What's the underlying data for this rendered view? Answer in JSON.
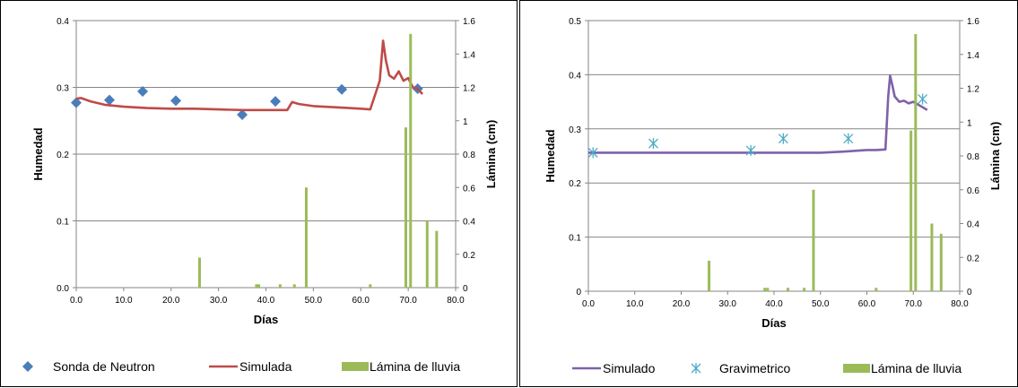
{
  "chart_data": [
    {
      "type": "line",
      "xlabel": "Días",
      "ylabel": "Humedad",
      "y2label": "Lámina (cm)",
      "xlim": [
        0,
        80
      ],
      "ylim": [
        0,
        0.4
      ],
      "y2lim": [
        0,
        1.6
      ],
      "xticks": [
        "0.0",
        "10.0",
        "20.0",
        "30.0",
        "40.0",
        "50.0",
        "60.0",
        "70.0",
        "80.0"
      ],
      "yticks": [
        "0.0",
        "0.1",
        "0.2",
        "0.3",
        "0.4"
      ],
      "y2ticks": [
        "0",
        "0.2",
        "0.4",
        "0.6",
        "0.8",
        "1",
        "1.2",
        "1.4",
        "1.6"
      ],
      "grid": "horizontal",
      "legend_position": "bottom",
      "series": [
        {
          "name": "Sonda de Neutron",
          "kind": "scatter",
          "marker": "diamond",
          "color": "#4a7ebb",
          "x": [
            0,
            7,
            14,
            21,
            35,
            42,
            56,
            72
          ],
          "y": [
            0.277,
            0.281,
            0.294,
            0.28,
            0.259,
            0.279,
            0.297,
            0.298
          ]
        },
        {
          "name": "Simulada",
          "kind": "line",
          "color": "#be4b48",
          "x": [
            0,
            1,
            3,
            6,
            10,
            15,
            20,
            25,
            30,
            35,
            40,
            44.5,
            45.5,
            47,
            50,
            55,
            60,
            62,
            64,
            64.7,
            65.3,
            66,
            67,
            68,
            69,
            70,
            71,
            72,
            73
          ],
          "y": [
            0.283,
            0.284,
            0.279,
            0.274,
            0.271,
            0.269,
            0.268,
            0.268,
            0.267,
            0.266,
            0.266,
            0.266,
            0.278,
            0.275,
            0.272,
            0.27,
            0.268,
            0.267,
            0.31,
            0.37,
            0.34,
            0.318,
            0.313,
            0.324,
            0.31,
            0.314,
            0.3,
            0.298,
            0.29
          ]
        },
        {
          "name": "Lámina de lluvia",
          "kind": "bar",
          "axis": "y2",
          "color": "#9bbb59",
          "x": [
            26,
            38,
            38.5,
            43,
            46,
            48.5,
            62,
            69.5,
            70.5,
            74,
            76
          ],
          "y": [
            0.18,
            0.02,
            0.02,
            0.02,
            0.02,
            0.6,
            0.02,
            0.96,
            1.52,
            0.4,
            0.34
          ]
        }
      ]
    },
    {
      "type": "line",
      "xlabel": "Días",
      "ylabel": "Humedad",
      "y2label": "Lámina (cm)",
      "xlim": [
        0,
        80
      ],
      "ylim": [
        0,
        0.5
      ],
      "y2lim": [
        0,
        1.6
      ],
      "xticks": [
        "0.0",
        "10.0",
        "20.0",
        "30.0",
        "40.0",
        "50.0",
        "60.0",
        "70.0",
        "80.0"
      ],
      "yticks": [
        "0",
        "0.1",
        "0.2",
        "0.3",
        "0.4",
        "0.5"
      ],
      "y2ticks": [
        "0",
        "0.2",
        "0.4",
        "0.6",
        "0.8",
        "1",
        "1.2",
        "1.4",
        "1.6"
      ],
      "grid": "horizontal",
      "legend_position": "bottom",
      "series": [
        {
          "name": "Simulado",
          "kind": "line",
          "color": "#7f62a8",
          "x": [
            0,
            10,
            20,
            30,
            40,
            50,
            55,
            60,
            62,
            64,
            64.6,
            65,
            65.5,
            66,
            67,
            68,
            69,
            70,
            71,
            72,
            73
          ],
          "y": [
            0.256,
            0.256,
            0.256,
            0.256,
            0.256,
            0.256,
            0.258,
            0.261,
            0.261,
            0.262,
            0.36,
            0.398,
            0.38,
            0.36,
            0.35,
            0.352,
            0.347,
            0.35,
            0.345,
            0.34,
            0.335
          ]
        },
        {
          "name": "Gravimetrico",
          "kind": "scatter",
          "marker": "asterisk",
          "color": "#4bacc6",
          "x": [
            1,
            14,
            35,
            42,
            56,
            72
          ],
          "y": [
            0.256,
            0.273,
            0.26,
            0.282,
            0.282,
            0.355
          ]
        },
        {
          "name": "Lámina de lluvia",
          "kind": "bar",
          "axis": "y2",
          "color": "#9bbb59",
          "x": [
            26,
            38,
            38.6,
            43,
            46.5,
            48.5,
            62,
            69.5,
            70.5,
            74,
            76
          ],
          "y": [
            0.18,
            0.02,
            0.02,
            0.02,
            0.02,
            0.6,
            0.02,
            0.95,
            1.52,
            0.4,
            0.34
          ]
        }
      ]
    }
  ]
}
